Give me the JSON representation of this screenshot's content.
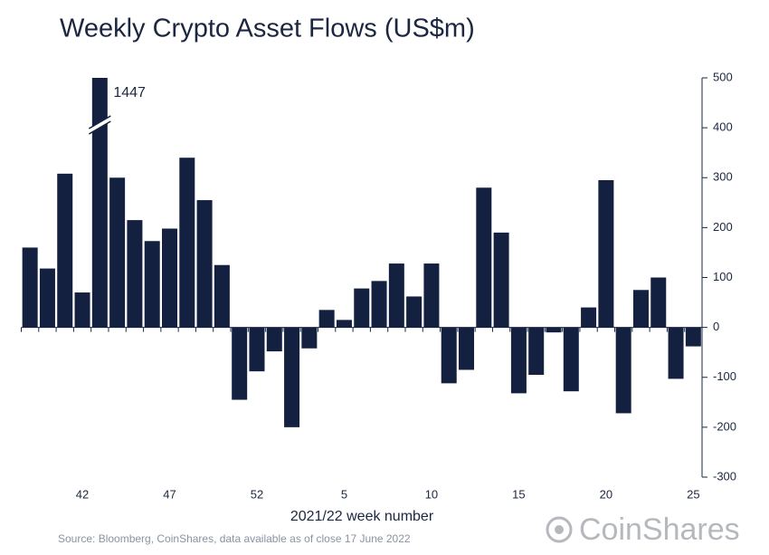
{
  "chart_data": {
    "type": "bar",
    "title": "Weekly Crypto Asset Flows (US$m)",
    "x_label": "2021/22 week number",
    "source": "Source: Bloomberg, CoinShares, data available as of close 17 June 2022",
    "brand": "CoinShares",
    "categories": [
      null,
      null,
      null,
      "42",
      null,
      null,
      null,
      null,
      "47",
      null,
      null,
      null,
      null,
      "52",
      null,
      null,
      null,
      null,
      "5",
      null,
      null,
      null,
      null,
      "10",
      null,
      null,
      null,
      null,
      "15",
      null,
      null,
      null,
      null,
      "20",
      null,
      null,
      null,
      null,
      "25"
    ],
    "values": [
      160,
      118,
      308,
      70,
      1447,
      300,
      215,
      173,
      198,
      340,
      255,
      125,
      -145,
      -88,
      -48,
      -200,
      -42,
      35,
      15,
      78,
      93,
      128,
      62,
      128,
      -112,
      -85,
      280,
      190,
      -132,
      -95,
      -10,
      -128,
      40,
      295,
      -172,
      75,
      100,
      -103,
      -38
    ],
    "color": "#13203f",
    "ylim": [
      -300,
      500
    ],
    "yticks": [
      -300,
      -200,
      -100,
      0,
      100,
      200,
      300,
      400,
      500
    ],
    "y_axis_side": "right"
  }
}
